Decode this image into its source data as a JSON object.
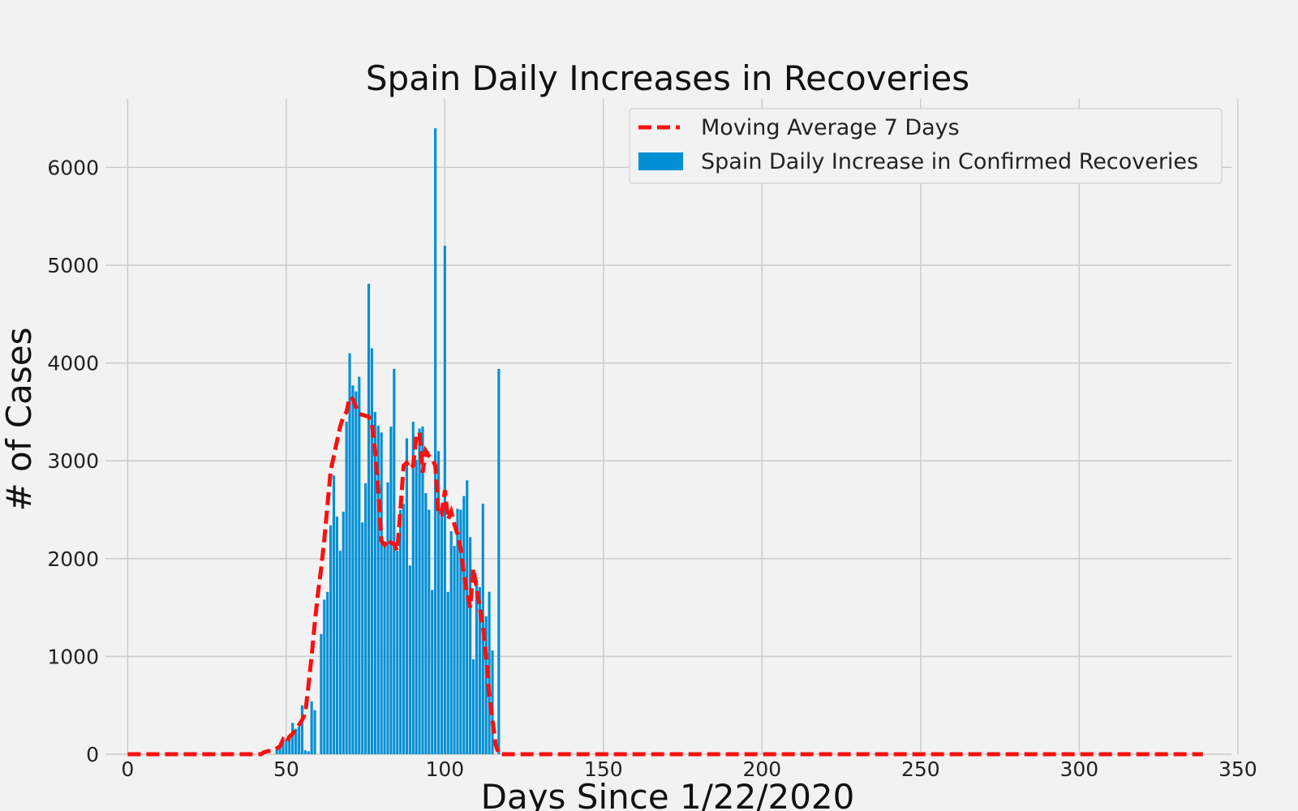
{
  "chart_data": {
    "type": "bar",
    "title": "Spain Daily Increases in Recoveries",
    "xlabel": "Days Since 1/22/2020",
    "ylabel": "# of Cases",
    "xlim": [
      -7,
      348
    ],
    "ylim": [
      0,
      6700
    ],
    "xticks": [
      0,
      50,
      100,
      150,
      200,
      250,
      300,
      350
    ],
    "yticks": [
      0,
      1000,
      2000,
      3000,
      4000,
      5000,
      6000
    ],
    "grid": true,
    "legend_position": "top-right",
    "series": [
      {
        "name": "Spain Daily Increase in Confirmed Recoveries",
        "kind": "bar",
        "color": "#008fd5",
        "x": [
          43,
          44,
          45,
          46,
          47,
          48,
          49,
          50,
          51,
          52,
          53,
          54,
          55,
          56,
          57,
          58,
          59,
          60,
          61,
          62,
          63,
          64,
          65,
          66,
          67,
          68,
          69,
          70,
          71,
          72,
          73,
          74,
          75,
          76,
          77,
          78,
          79,
          80,
          81,
          82,
          83,
          84,
          85,
          86,
          87,
          88,
          89,
          90,
          91,
          92,
          93,
          94,
          95,
          96,
          97,
          98,
          99,
          100,
          101,
          102,
          103,
          104,
          105,
          106,
          107,
          108,
          109,
          110,
          111,
          112,
          113,
          114,
          115,
          116,
          117
        ],
        "values": [
          20,
          0,
          0,
          0,
          50,
          60,
          120,
          150,
          170,
          320,
          260,
          280,
          500,
          40,
          30,
          540,
          450,
          0,
          1230,
          1580,
          1660,
          2340,
          2850,
          2430,
          2080,
          2480,
          3400,
          4100,
          3770,
          3710,
          3860,
          2370,
          2770,
          4810,
          4150,
          3500,
          3360,
          3290,
          2150,
          2780,
          3350,
          3940,
          2080,
          2500,
          2560,
          3230,
          1930,
          3400,
          3010,
          3330,
          3350,
          2670,
          2500,
          1680,
          6400,
          3100,
          2500,
          5200,
          1660,
          2280,
          2130,
          2510,
          2500,
          2640,
          2800,
          2220,
          970,
          1780,
          1710,
          2560,
          1410,
          1660,
          1060,
          0,
          3940
        ]
      },
      {
        "name": "Moving Average 7 Days",
        "kind": "line",
        "color": "#fc0f0f",
        "x": [
          0,
          42,
          43,
          44,
          46,
          47,
          48,
          49,
          50,
          51,
          52,
          53,
          54,
          55,
          56,
          57,
          58,
          59,
          60,
          61,
          62,
          63,
          64,
          65,
          66,
          67,
          68,
          69,
          70,
          71,
          72,
          73,
          74,
          75,
          76,
          77,
          78,
          79,
          80,
          81,
          82,
          83,
          84,
          85,
          86,
          87,
          88,
          89,
          90,
          91,
          92,
          93,
          94,
          95,
          96,
          97,
          98,
          99,
          100,
          101,
          102,
          103,
          104,
          105,
          106,
          107,
          108,
          109,
          110,
          111,
          112,
          113,
          114,
          115,
          116,
          117,
          118,
          339
        ],
        "values": [
          0,
          0,
          20,
          30,
          40,
          60,
          80,
          150,
          120,
          180,
          210,
          260,
          300,
          350,
          420,
          700,
          1000,
          1350,
          1650,
          1900,
          2200,
          2550,
          2900,
          3050,
          3200,
          3350,
          3450,
          3500,
          3650,
          3630,
          3550,
          3480,
          3470,
          3460,
          3450,
          3380,
          3100,
          2700,
          2180,
          2140,
          2200,
          2160,
          2150,
          2080,
          2500,
          2950,
          2980,
          2920,
          2950,
          3250,
          3290,
          2880,
          3100,
          3050,
          3020,
          2950,
          2450,
          2450,
          2700,
          2400,
          2480,
          2350,
          2250,
          2100,
          1850,
          1650,
          1500,
          1900,
          1700,
          1500,
          1300,
          1000,
          600,
          350,
          100,
          0,
          0,
          0
        ]
      }
    ]
  }
}
